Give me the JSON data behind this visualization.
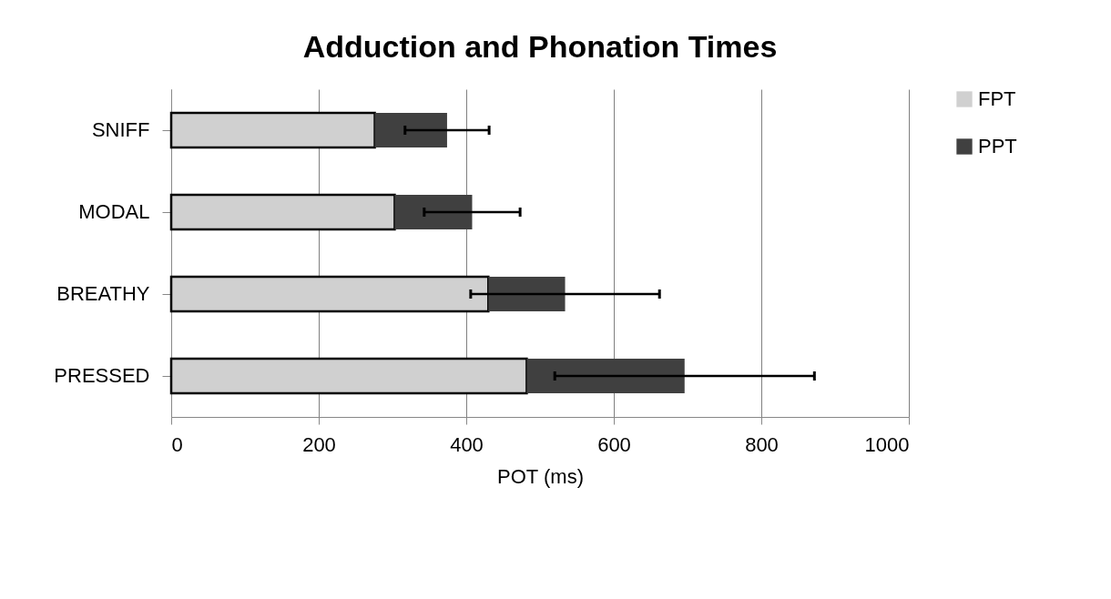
{
  "chart_data": {
    "type": "bar",
    "title": "Adduction and Phonation Times",
    "xlabel": "POT (ms)",
    "orientation": "horizontal",
    "stacked": true,
    "categories": [
      "SNIFF",
      "MODAL",
      "BREATHY",
      "PRESSED"
    ],
    "series": [
      {
        "name": "FPT",
        "color": "#d0d0d0",
        "values": [
          276,
          303,
          430,
          482
        ]
      },
      {
        "name": "PPT",
        "color": "#404040",
        "values": [
          98,
          105,
          104,
          214
        ],
        "errors": [
          57,
          65,
          128,
          176
        ]
      }
    ],
    "xlim": [
      0,
      1000
    ],
    "xticks": [
      0,
      200,
      400,
      600,
      800,
      1000
    ],
    "grid": "x",
    "legend": "right"
  }
}
